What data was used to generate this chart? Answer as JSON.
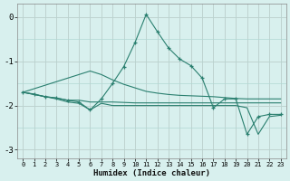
{
  "xlabel": "Humidex (Indice chaleur)",
  "x": [
    0,
    1,
    2,
    3,
    4,
    5,
    6,
    7,
    8,
    9,
    10,
    11,
    12,
    13,
    14,
    15,
    16,
    17,
    18,
    19,
    20,
    21,
    22,
    23
  ],
  "y_main": [
    -1.7,
    -1.74,
    -1.8,
    -1.83,
    -1.88,
    -1.92,
    -2.1,
    -1.85,
    -1.5,
    -1.12,
    -0.58,
    0.06,
    -0.33,
    -0.7,
    -0.95,
    -1.1,
    -1.38,
    -2.05,
    -1.85,
    -1.85,
    -2.65,
    -2.25,
    -2.2,
    -2.2
  ],
  "y_upper": [
    -1.7,
    -1.62,
    -1.54,
    -1.46,
    -1.38,
    -1.3,
    -1.22,
    -1.3,
    -1.42,
    -1.52,
    -1.6,
    -1.68,
    -1.72,
    -1.75,
    -1.77,
    -1.78,
    -1.79,
    -1.8,
    -1.82,
    -1.84,
    -1.85,
    -1.85,
    -1.85,
    -1.85
  ],
  "y_mid": [
    -1.7,
    -1.75,
    -1.8,
    -1.83,
    -1.88,
    -1.88,
    -1.92,
    -1.92,
    -1.92,
    -1.93,
    -1.94,
    -1.94,
    -1.94,
    -1.94,
    -1.94,
    -1.94,
    -1.94,
    -1.94,
    -1.94,
    -1.94,
    -1.94,
    -1.94,
    -1.94,
    -1.94
  ],
  "y_lower": [
    -1.7,
    -1.75,
    -1.8,
    -1.85,
    -1.92,
    -1.95,
    -2.1,
    -1.95,
    -2.0,
    -2.0,
    -2.0,
    -2.0,
    -2.0,
    -2.0,
    -2.0,
    -2.0,
    -2.0,
    -2.0,
    -2.0,
    -2.0,
    -2.05,
    -2.65,
    -2.25,
    -2.22
  ],
  "ylim": [
    -3.2,
    0.3
  ],
  "xlim": [
    -0.5,
    23.5
  ],
  "yticks": [
    0,
    -1,
    -2,
    -3
  ],
  "xticks": [
    0,
    1,
    2,
    3,
    4,
    5,
    6,
    7,
    8,
    9,
    10,
    11,
    12,
    13,
    14,
    15,
    16,
    17,
    18,
    19,
    20,
    21,
    22,
    23
  ],
  "line_color": "#2a7f6f",
  "bg_color": "#d8f0ee",
  "grid_color": "#b0d8d4",
  "grid_color_red": "#f0b8b8"
}
